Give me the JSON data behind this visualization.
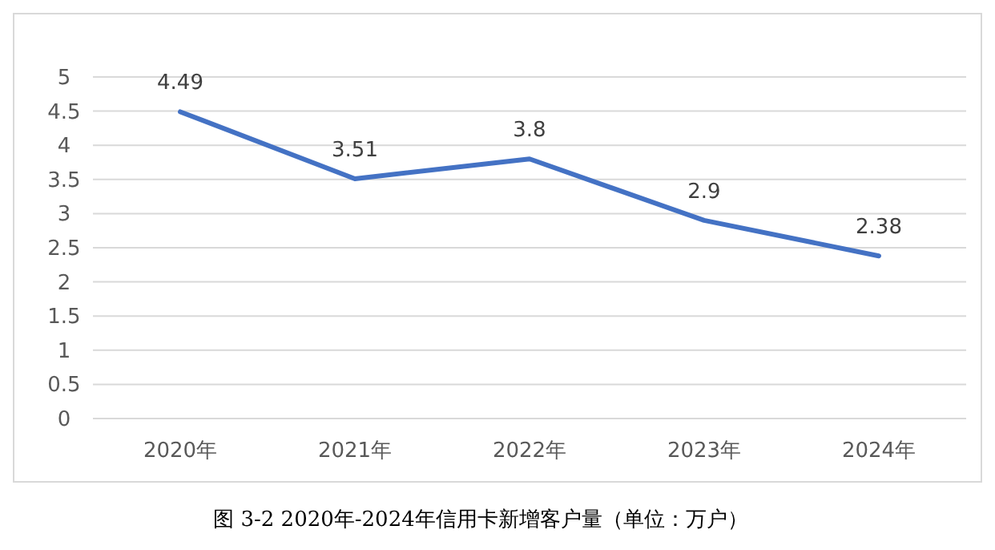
{
  "chart_data": {
    "type": "line",
    "categories": [
      "2020年",
      "2021年",
      "2022年",
      "2023年",
      "2024年"
    ],
    "values": [
      4.49,
      3.51,
      3.8,
      2.9,
      2.38
    ],
    "color": "#4472c4",
    "ylim": [
      0,
      5
    ],
    "yticks": [
      0,
      0.5,
      1,
      1.5,
      2,
      2.5,
      3,
      3.5,
      4,
      4.5,
      5
    ],
    "grid": "y",
    "data_labels": true,
    "annotations": [
      "图 3-2 2020年-2024年信用卡新增客户量（单位：万户）"
    ]
  }
}
